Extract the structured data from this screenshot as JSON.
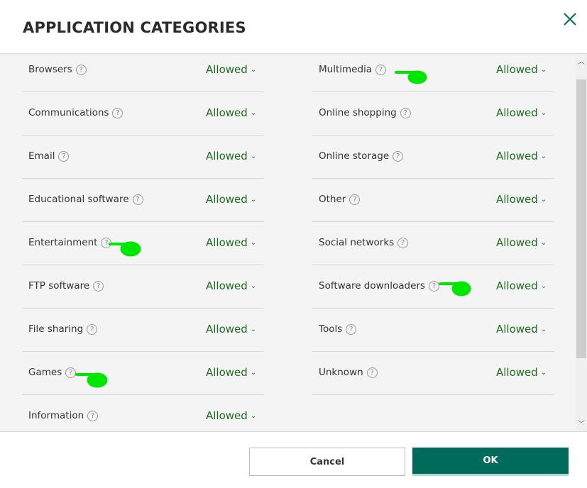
{
  "dialog": {
    "title": "APPLICATION CATEGORIES",
    "close_icon": "close-x-icon"
  },
  "left": [
    {
      "label": "Browsers",
      "value": "Allowed"
    },
    {
      "label": "Communications",
      "value": "Allowed"
    },
    {
      "label": "Email",
      "value": "Allowed"
    },
    {
      "label": "Educational software",
      "value": "Allowed"
    },
    {
      "label": "Entertainment",
      "value": "Allowed"
    },
    {
      "label": "FTP software",
      "value": "Allowed"
    },
    {
      "label": "File sharing",
      "value": "Allowed"
    },
    {
      "label": "Games",
      "value": "Allowed"
    },
    {
      "label": "Information",
      "value": "Allowed"
    }
  ],
  "right": [
    {
      "label": "Multimedia",
      "value": "Allowed"
    },
    {
      "label": "Online shopping",
      "value": "Allowed"
    },
    {
      "label": "Online storage",
      "value": "Allowed"
    },
    {
      "label": "Other",
      "value": "Allowed"
    },
    {
      "label": "Social networks",
      "value": "Allowed"
    },
    {
      "label": "Software downloaders",
      "value": "Allowed"
    },
    {
      "label": "Tools",
      "value": "Allowed"
    },
    {
      "label": "Unknown",
      "value": "Allowed"
    }
  ],
  "help": "?",
  "footer": {
    "cancel": "Cancel",
    "ok": "OK"
  },
  "colors": {
    "accent": "#006b5a",
    "allowed": "#1f6b1f",
    "annotation": "#00e600"
  }
}
